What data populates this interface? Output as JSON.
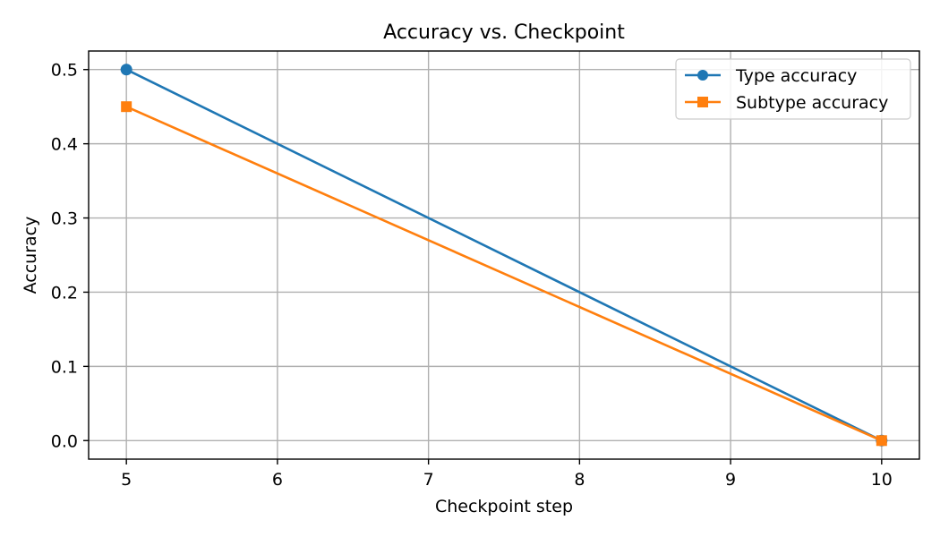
{
  "chart_data": {
    "type": "line",
    "title": "Accuracy vs. Checkpoint",
    "xlabel": "Checkpoint step",
    "ylabel": "Accuracy",
    "x": [
      5,
      10
    ],
    "xticks": [
      5,
      6,
      7,
      8,
      9,
      10
    ],
    "xtick_labels": [
      "5",
      "6",
      "7",
      "8",
      "9",
      "10"
    ],
    "yticks": [
      0.0,
      0.1,
      0.2,
      0.3,
      0.4,
      0.5
    ],
    "ytick_labels": [
      "0.0",
      "0.1",
      "0.2",
      "0.3",
      "0.4",
      "0.5"
    ],
    "xlim": [
      4.75,
      10.25
    ],
    "ylim": [
      -0.025,
      0.525
    ],
    "grid": true,
    "legend_position": "top-right",
    "series": [
      {
        "name": "Type accuracy",
        "values": [
          0.5,
          0.0
        ],
        "color": "#1f77b4",
        "marker": "circle"
      },
      {
        "name": "Subtype accuracy",
        "values": [
          0.45,
          0.0
        ],
        "color": "#ff7f0e",
        "marker": "square"
      }
    ]
  }
}
